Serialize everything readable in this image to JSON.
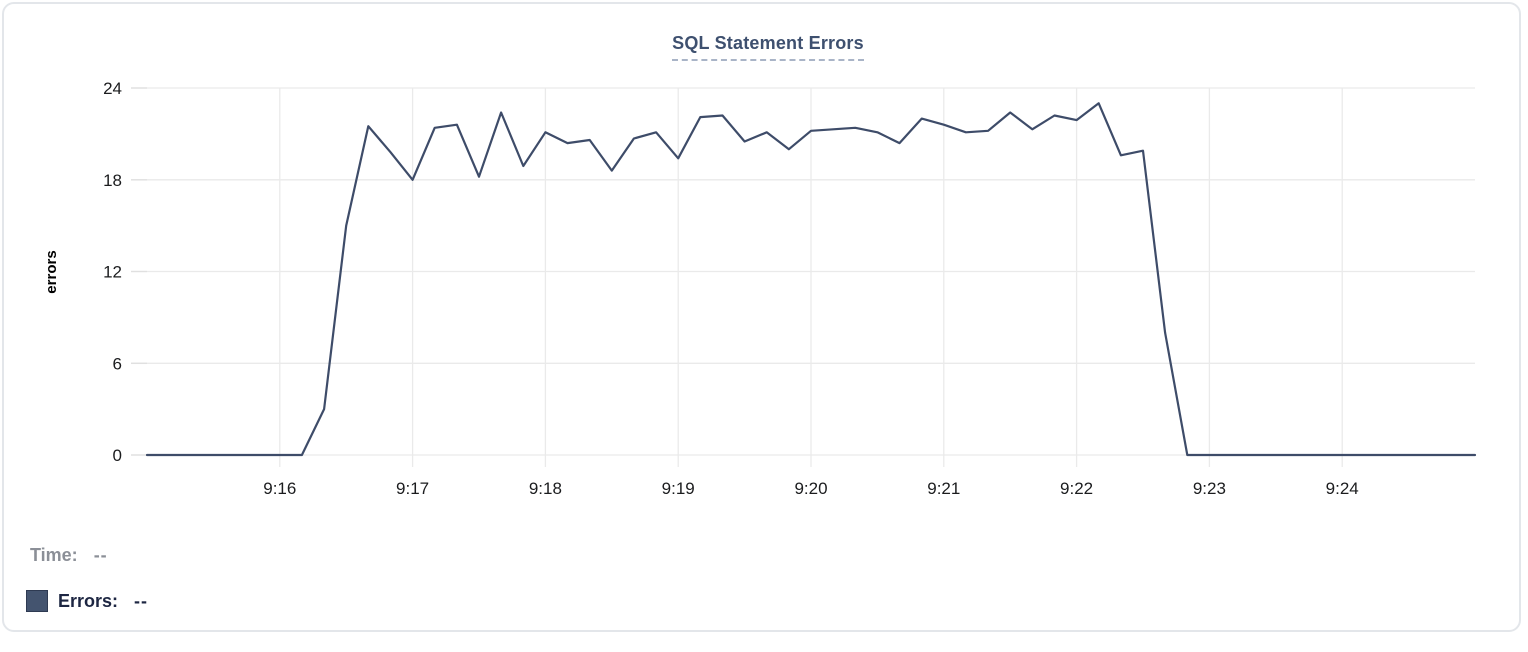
{
  "title": "SQL Statement Errors",
  "colors": {
    "line": "#3e4c69",
    "swatch": "#44546f",
    "title_text": "#3e506f",
    "title_underline": "#a9b4c7",
    "grid": "#eaeaea",
    "tick_text": "#1b1c1e",
    "time_legend_text": "#8b8f97",
    "errors_legend_text": "#1d2642",
    "card_border": "#e3e6ea"
  },
  "legend": {
    "time_label": "Time:",
    "time_value": "--",
    "errors_label": "Errors:",
    "errors_value": "--"
  },
  "chart_data": {
    "type": "line",
    "title": "SQL Statement Errors",
    "xlabel": "",
    "ylabel": "errors",
    "ylim": [
      0,
      24
    ],
    "y_ticks": [
      0,
      6,
      12,
      18,
      24
    ],
    "x_tick_labels": [
      "9:16",
      "9:17",
      "9:18",
      "9:19",
      "9:20",
      "9:21",
      "9:22",
      "9:23",
      "9:24"
    ],
    "x_start_time": "9:15:00",
    "x_end_time": "9:25:00",
    "point_interval_seconds": 10,
    "grid": true,
    "legend_position": "bottom-left",
    "series": [
      {
        "name": "Errors",
        "color": "#3e4c69",
        "values": [
          0,
          0,
          0,
          0,
          0,
          0,
          0,
          0,
          3,
          15,
          21.5,
          19.8,
          18,
          21.4,
          21.6,
          18.2,
          22.4,
          18.9,
          21.1,
          20.4,
          20.6,
          18.6,
          20.7,
          21.1,
          19.4,
          22.1,
          22.2,
          20.5,
          21.1,
          20,
          21.2,
          21.3,
          21.4,
          21.1,
          20.4,
          22,
          21.6,
          21.1,
          21.2,
          22.4,
          21.3,
          22.2,
          21.9,
          23,
          19.6,
          19.9,
          8,
          0,
          0,
          0,
          0,
          0,
          0,
          0,
          0,
          0,
          0,
          0,
          0,
          0,
          0
        ]
      }
    ]
  }
}
